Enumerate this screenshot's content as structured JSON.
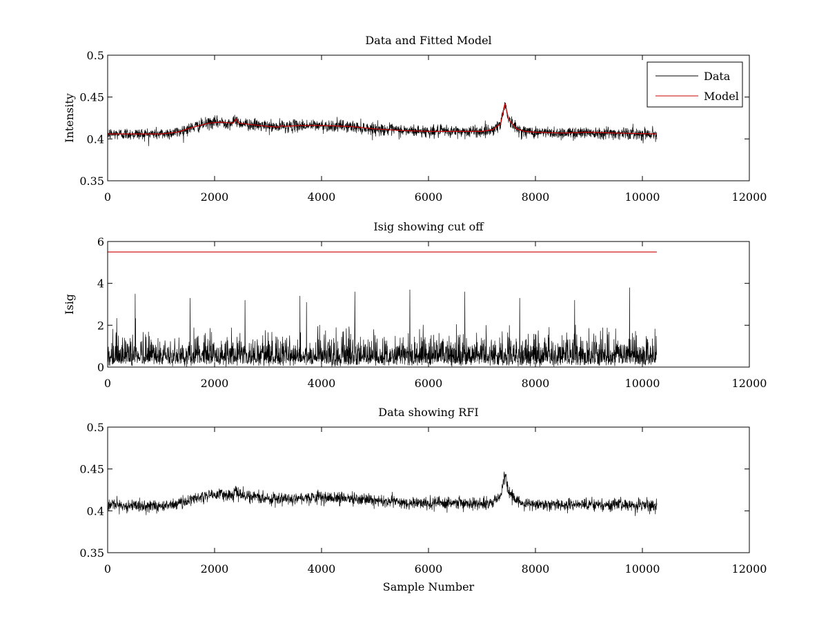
{
  "figure": {
    "background": "#ffffff"
  },
  "chart_data": [
    {
      "type": "line",
      "title": "Data and Fitted Model",
      "xlabel": "",
      "ylabel": "Intensity",
      "xlim": [
        0,
        12000
      ],
      "ylim": [
        0.35,
        0.5
      ],
      "xticks": [
        "0",
        "2000",
        "4000",
        "6000",
        "8000",
        "10000",
        "12000"
      ],
      "yticks": [
        "0.35",
        "0.4",
        "0.45",
        "0.5"
      ],
      "xtick_values": [
        0,
        2000,
        4000,
        6000,
        8000,
        10000,
        12000
      ],
      "ytick_values": [
        0.35,
        0.4,
        0.45,
        0.5
      ],
      "grid": false,
      "legend": {
        "placement": "top-right",
        "entries": [
          "Data",
          "Model"
        ]
      },
      "series": [
        {
          "name": "Data",
          "color": "#000000",
          "sample_range": [
            1,
            10270
          ],
          "noise_amplitude": 0.004,
          "x": [
            0,
            1000,
            1300,
            1600,
            1900,
            2100,
            2350,
            2400,
            2450,
            2700,
            3000,
            3200,
            3250,
            3300,
            3600,
            4000,
            4500,
            5000,
            5500,
            6000,
            6500,
            7000,
            7200,
            7350,
            7430,
            7500,
            7650,
            7800,
            8000,
            8500,
            9000,
            9500,
            10270
          ],
          "values": [
            0.406,
            0.406,
            0.408,
            0.414,
            0.419,
            0.42,
            0.419,
            0.424,
            0.419,
            0.417,
            0.415,
            0.414,
            0.416,
            0.415,
            0.416,
            0.416,
            0.415,
            0.412,
            0.41,
            0.409,
            0.409,
            0.409,
            0.411,
            0.418,
            0.443,
            0.423,
            0.412,
            0.409,
            0.408,
            0.407,
            0.408,
            0.407,
            0.406
          ]
        },
        {
          "name": "Model",
          "color": "#cc0000",
          "x": [
            0,
            1000,
            1300,
            1600,
            1900,
            2100,
            2350,
            2400,
            2450,
            2700,
            3000,
            3200,
            3250,
            3300,
            3600,
            4000,
            4500,
            5000,
            5500,
            6000,
            6500,
            7000,
            7200,
            7350,
            7430,
            7500,
            7650,
            7800,
            8000,
            8500,
            9000,
            9500,
            10270
          ],
          "values": [
            0.406,
            0.406,
            0.408,
            0.414,
            0.419,
            0.42,
            0.419,
            0.424,
            0.419,
            0.417,
            0.415,
            0.414,
            0.416,
            0.415,
            0.416,
            0.416,
            0.415,
            0.412,
            0.41,
            0.409,
            0.409,
            0.409,
            0.411,
            0.418,
            0.443,
            0.423,
            0.412,
            0.409,
            0.408,
            0.407,
            0.408,
            0.407,
            0.406
          ]
        }
      ]
    },
    {
      "type": "line",
      "title": "Isig showing cut off",
      "xlabel": "",
      "ylabel": "Isig",
      "xlim": [
        0,
        12000
      ],
      "ylim": [
        0,
        6
      ],
      "xticks": [
        "0",
        "2000",
        "4000",
        "6000",
        "8000",
        "10000",
        "12000"
      ],
      "yticks": [
        "0",
        "2",
        "4",
        "6"
      ],
      "xtick_values": [
        0,
        2000,
        4000,
        6000,
        8000,
        10000,
        12000
      ],
      "ytick_values": [
        0,
        2,
        4,
        6
      ],
      "grid": false,
      "series": [
        {
          "color": "#000000",
          "sample_range": [
            1,
            10270
          ],
          "typical_max": 2.0,
          "peaks": [
            3.5,
            3.3,
            3.2,
            3.4,
            3.6,
            3.7,
            3.6,
            3.3,
            3.2,
            3.8
          ]
        },
        {
          "color": "#cc0000",
          "x": [
            0,
            10270
          ],
          "values": [
            5.5,
            5.5
          ]
        }
      ]
    },
    {
      "type": "line",
      "title": "Data showing RFI",
      "xlabel": "Sample Number",
      "ylabel": "",
      "xlim": [
        0,
        12000
      ],
      "ylim": [
        0.35,
        0.5
      ],
      "xticks": [
        "0",
        "2000",
        "4000",
        "6000",
        "8000",
        "10000",
        "12000"
      ],
      "yticks": [
        "0.35",
        "0.4",
        "0.45",
        "0.5"
      ],
      "xtick_values": [
        0,
        2000,
        4000,
        6000,
        8000,
        10000,
        12000
      ],
      "ytick_values": [
        0.35,
        0.4,
        0.45,
        0.5
      ],
      "grid": false,
      "series": [
        {
          "color": "#000000",
          "sample_range": [
            1,
            10270
          ],
          "noise_amplitude": 0.004,
          "x": [
            0,
            1000,
            1300,
            1600,
            1900,
            2100,
            2350,
            2400,
            2450,
            2700,
            3000,
            3200,
            3250,
            3300,
            3600,
            4000,
            4500,
            5000,
            5500,
            6000,
            6500,
            7000,
            7200,
            7350,
            7430,
            7500,
            7650,
            7800,
            8000,
            8500,
            9000,
            9500,
            10270
          ],
          "values": [
            0.406,
            0.406,
            0.408,
            0.414,
            0.419,
            0.42,
            0.419,
            0.424,
            0.419,
            0.417,
            0.415,
            0.414,
            0.416,
            0.415,
            0.416,
            0.416,
            0.415,
            0.412,
            0.41,
            0.409,
            0.409,
            0.409,
            0.411,
            0.418,
            0.443,
            0.423,
            0.412,
            0.409,
            0.408,
            0.407,
            0.408,
            0.407,
            0.406
          ]
        }
      ]
    }
  ]
}
